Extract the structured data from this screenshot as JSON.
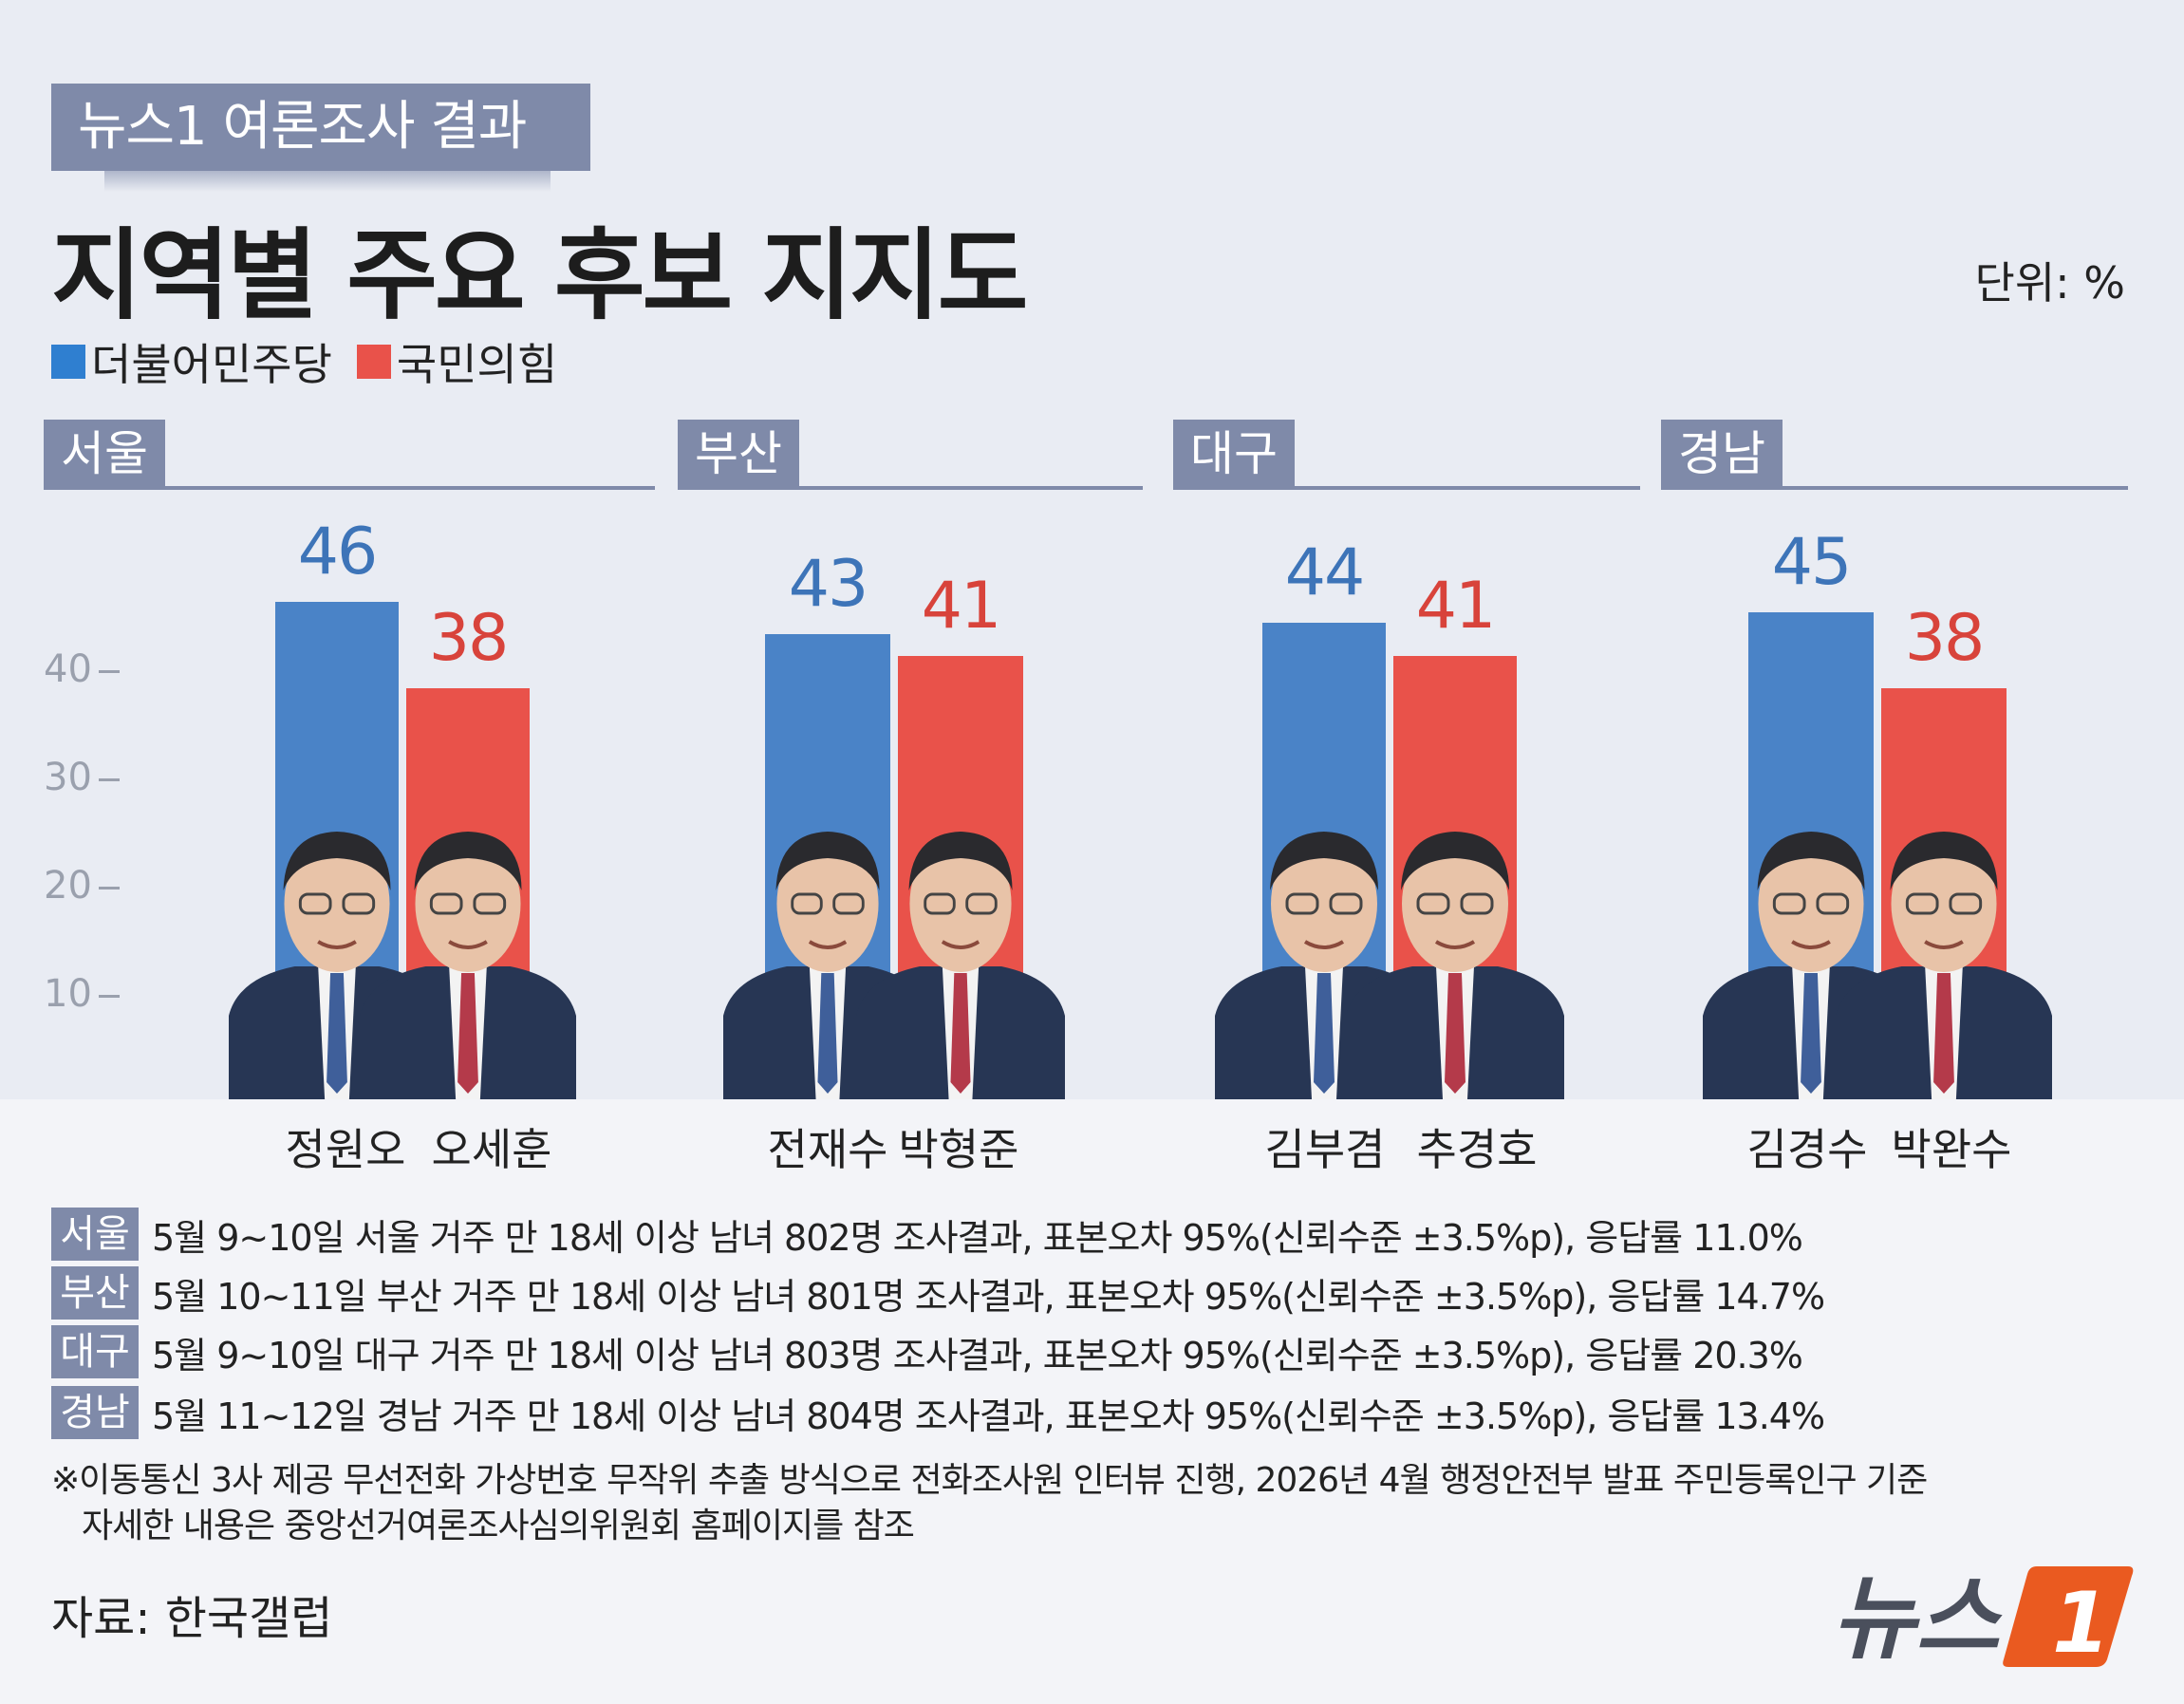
{
  "header": {
    "badge": "뉴스1 여론조사 결과",
    "title": "지역별 주요 후보 지지도",
    "unit": "단위: %"
  },
  "legend": [
    {
      "label": "더불어민주당",
      "color": "#4a83c7"
    },
    {
      "label": "국민의힘",
      "color": "#e9524a"
    }
  ],
  "chart_data": {
    "type": "bar",
    "title": "지역별 주요 후보 지지도",
    "unit": "%",
    "y_ticks": [
      "40",
      "30",
      "20",
      "10"
    ],
    "ylim": [
      0,
      50
    ],
    "categories": [
      "서울",
      "부산",
      "대구",
      "경남"
    ],
    "series": [
      {
        "name": "더불어민주당",
        "color": "#4a83c7",
        "values": [
          46,
          43,
          44,
          45
        ],
        "candidates": [
          "정원오",
          "전재수",
          "김부겸",
          "김경수"
        ]
      },
      {
        "name": "국민의힘",
        "color": "#e9524a",
        "values": [
          38,
          41,
          41,
          38
        ],
        "candidates": [
          "오세훈",
          "박형준",
          "추경호",
          "박완수"
        ]
      }
    ]
  },
  "notes": [
    {
      "region": "서울",
      "text": "5월 9~10일 서울 거주 만 18세 이상 남녀 802명 조사결과, 표본오차 95%(신뢰수준 ±3.5%p), 응답률 11.0%"
    },
    {
      "region": "부산",
      "text": "5월 10~11일 부산 거주 만 18세 이상 남녀 801명 조사결과, 표본오차 95%(신뢰수준 ±3.5%p), 응답률  14.7%"
    },
    {
      "region": "대구",
      "text": "5월 9~10일 대구 거주 만 18세 이상 남녀 803명 조사결과, 표본오차 95%(신뢰수준 ±3.5%p), 응답률 20.3%"
    },
    {
      "region": "경남",
      "text": "5월 11~12일 경남 거주 만 18세 이상 남녀 804명 조사결과, 표본오차 95%(신뢰수준 ±3.5%p), 응답률 13.4%"
    }
  ],
  "footnote_1": "※이동통신 3사 제공 무선전화 가상번호 무작위 추출 방식으로 전화조사원 인터뷰 진행, 2026년 4월 행정안전부 발표 주민등록인구 기준",
  "footnote_2": "자세한 내용은 중앙선거여론조사심의위원회 홈페이지를 참조",
  "source": "자료: 한국갤럽",
  "logo_text": "뉴스",
  "logo_mark": "1"
}
